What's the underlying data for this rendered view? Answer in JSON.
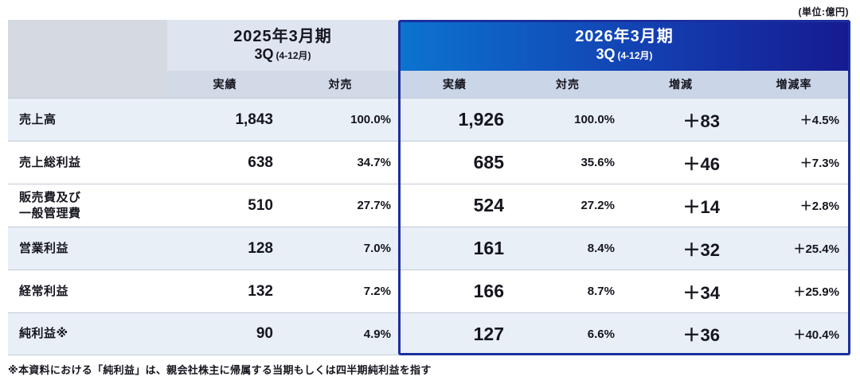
{
  "unit_label": "(単位:億円)",
  "fy2025": {
    "title": "2025年3月期",
    "quarter": "3Q",
    "months": "(4-12月)",
    "columns": {
      "actual": "実績",
      "ratio": "対売"
    }
  },
  "fy2026": {
    "title": "2026年3月期",
    "quarter": "3Q",
    "months": "(4-12月)",
    "columns": {
      "actual": "実績",
      "ratio": "対売",
      "change": "増減",
      "change_rate": "増減率"
    }
  },
  "rows": [
    {
      "label": "売上高",
      "actual_2025": "1,843",
      "ratio_2025": "100.0%",
      "actual_2026": "1,926",
      "ratio_2026": "100.0%",
      "change": "＋83",
      "change_rate": "＋4.5%"
    },
    {
      "label": "売上総利益",
      "actual_2025": "638",
      "ratio_2025": "34.7%",
      "actual_2026": "685",
      "ratio_2026": "35.6%",
      "change": "＋46",
      "change_rate": "＋7.3%"
    },
    {
      "label": "販売費及び\n一般管理費",
      "actual_2025": "510",
      "ratio_2025": "27.7%",
      "actual_2026": "524",
      "ratio_2026": "27.2%",
      "change": "＋14",
      "change_rate": "＋2.8%"
    },
    {
      "label": "営業利益",
      "actual_2025": "128",
      "ratio_2025": "7.0%",
      "actual_2026": "161",
      "ratio_2026": "8.4%",
      "change": "＋32",
      "change_rate": "＋25.4%"
    },
    {
      "label": "経常利益",
      "actual_2025": "132",
      "ratio_2025": "7.2%",
      "actual_2026": "166",
      "ratio_2026": "8.7%",
      "change": "＋34",
      "change_rate": "＋25.9%"
    },
    {
      "label": "純利益※",
      "actual_2025": "90",
      "ratio_2025": "4.9%",
      "actual_2026": "127",
      "ratio_2026": "6.6%",
      "change": "＋36",
      "change_rate": "＋40.4%"
    }
  ],
  "footnote": "※本資料における「純利益」は、親会社株主に帰属する当期もしくは四半期純利益を指す",
  "colors": {
    "fy2026_gradient_start": "#0C74D0",
    "fy2026_gradient_end": "#161A90",
    "fy2026_border": "#1B2E9E",
    "fy2025_header_bg": "#DEE5F0",
    "row_tint": "#E9EFF7"
  },
  "chart_data": {
    "type": "table",
    "title": "四半期業績比較 2025年3月期3Q vs 2026年3月期3Q",
    "unit": "億円",
    "columns": [
      "2025年3月期3Q(4-12月) 実績",
      "2025年3月期3Q(4-12月) 対売",
      "2026年3月期3Q(4-12月) 実績",
      "2026年3月期3Q(4-12月) 対売",
      "増減",
      "増減率"
    ],
    "rows": [
      {
        "item": "売上高",
        "fy2025_actual": 1843,
        "fy2025_ratio_pct": 100.0,
        "fy2026_actual": 1926,
        "fy2026_ratio_pct": 100.0,
        "change": 83,
        "change_rate_pct": 4.5
      },
      {
        "item": "売上総利益",
        "fy2025_actual": 638,
        "fy2025_ratio_pct": 34.7,
        "fy2026_actual": 685,
        "fy2026_ratio_pct": 35.6,
        "change": 46,
        "change_rate_pct": 7.3
      },
      {
        "item": "販売費及び一般管理費",
        "fy2025_actual": 510,
        "fy2025_ratio_pct": 27.7,
        "fy2026_actual": 524,
        "fy2026_ratio_pct": 27.2,
        "change": 14,
        "change_rate_pct": 2.8
      },
      {
        "item": "営業利益",
        "fy2025_actual": 128,
        "fy2025_ratio_pct": 7.0,
        "fy2026_actual": 161,
        "fy2026_ratio_pct": 8.4,
        "change": 32,
        "change_rate_pct": 25.4
      },
      {
        "item": "経常利益",
        "fy2025_actual": 132,
        "fy2025_ratio_pct": 7.2,
        "fy2026_actual": 166,
        "fy2026_ratio_pct": 8.7,
        "change": 34,
        "change_rate_pct": 25.9
      },
      {
        "item": "純利益",
        "fy2025_actual": 90,
        "fy2025_ratio_pct": 4.9,
        "fy2026_actual": 127,
        "fy2026_ratio_pct": 6.6,
        "change": 36,
        "change_rate_pct": 40.4
      }
    ]
  }
}
